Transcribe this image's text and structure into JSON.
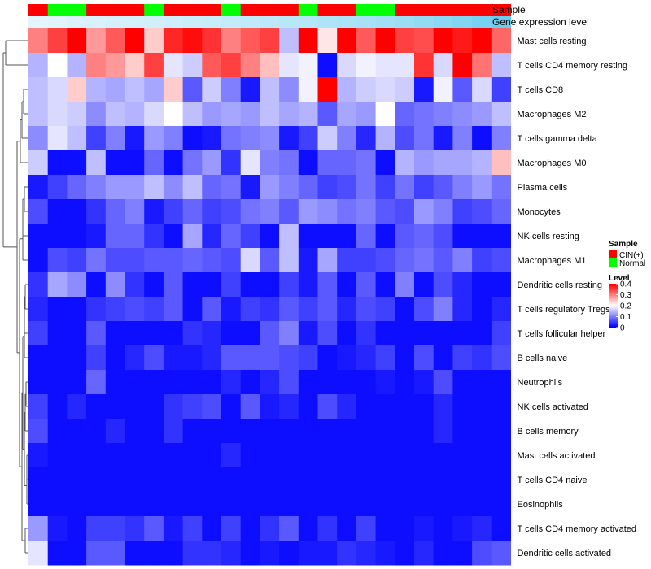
{
  "chart_data": {
    "type": "heatmap",
    "annotation_titles": {
      "sample": "Sample",
      "expression": "Gene expression level"
    },
    "samples": [
      "CIN(+)",
      "Normal",
      "Normal",
      "CIN(+)",
      "CIN(+)",
      "CIN(+)",
      "Normal",
      "CIN(+)",
      "CIN(+)",
      "CIN(+)",
      "Normal",
      "CIN(+)",
      "CIN(+)",
      "CIN(+)",
      "Normal",
      "CIN(+)",
      "CIN(+)",
      "Normal",
      "Normal",
      "CIN(+)",
      "CIN(+)",
      "CIN(+)",
      "CIN(+)",
      "CIN(+)",
      "CIN(+)"
    ],
    "expression_level": [
      0.02,
      0.05,
      0.08,
      0.1,
      0.12,
      0.14,
      0.16,
      0.18,
      0.2,
      0.22,
      0.25,
      0.27,
      0.3,
      0.33,
      0.36,
      0.4,
      0.43,
      0.46,
      0.5,
      0.55,
      0.6,
      0.66,
      0.72,
      0.8,
      0.9
    ],
    "rows": [
      {
        "name": "Mast cells resting",
        "values": [
          0.3,
          0.35,
          0.4,
          0.28,
          0.33,
          0.4,
          0.24,
          0.37,
          0.39,
          0.36,
          0.3,
          0.33,
          0.35,
          0.15,
          0.4,
          0.22,
          0.4,
          0.33,
          0.4,
          0.35,
          0.34,
          0.4,
          0.38,
          0.4,
          0.32
        ]
      },
      {
        "name": "T cells CD4 memory resting",
        "values": [
          0.14,
          0.2,
          0.14,
          0.3,
          0.28,
          0.24,
          0.35,
          0.18,
          0.16,
          0.33,
          0.35,
          0.3,
          0.25,
          0.18,
          0.19,
          0.01,
          0.17,
          0.19,
          0.18,
          0.18,
          0.36,
          0.17,
          0.4,
          0.31,
          0.15
        ]
      },
      {
        "name": "T cells CD8",
        "values": [
          0.15,
          0.17,
          0.24,
          0.14,
          0.13,
          0.15,
          0.13,
          0.24,
          0.07,
          0.16,
          0.1,
          0.02,
          0.15,
          0.11,
          0.19,
          0.4,
          0.14,
          0.16,
          0.17,
          0.16,
          0.02,
          0.19,
          0.07,
          0.17,
          0.05
        ]
      },
      {
        "name": "Macrophages M2",
        "values": [
          0.15,
          0.17,
          0.16,
          0.11,
          0.15,
          0.14,
          0.17,
          0.2,
          0.15,
          0.12,
          0.13,
          0.12,
          0.15,
          0.13,
          0.14,
          0.07,
          0.13,
          0.12,
          0.2,
          0.08,
          0.09,
          0.1,
          0.11,
          0.12,
          0.15
        ]
      },
      {
        "name": "T cells gamma delta",
        "values": [
          0.11,
          0.18,
          0.15,
          0.05,
          0.1,
          0.02,
          0.12,
          0.1,
          0.01,
          0.02,
          0.09,
          0.1,
          0.11,
          0.02,
          0.05,
          0.16,
          0.1,
          0.03,
          0.14,
          0.06,
          0.09,
          0.02,
          0.1,
          0.01,
          0.1
        ]
      },
      {
        "name": "Macrophages M0",
        "values": [
          0.16,
          0.01,
          0.01,
          0.15,
          0.01,
          0.01,
          0.08,
          0.01,
          0.09,
          0.12,
          0.04,
          0.18,
          0.1,
          0.09,
          0.01,
          0.08,
          0.08,
          0.09,
          0.01,
          0.14,
          0.12,
          0.13,
          0.13,
          0.14,
          0.25
        ]
      },
      {
        "name": "Plasma cells",
        "values": [
          0.02,
          0.05,
          0.08,
          0.1,
          0.12,
          0.12,
          0.15,
          0.11,
          0.15,
          0.08,
          0.09,
          0.02,
          0.12,
          0.1,
          0.08,
          0.05,
          0.06,
          0.09,
          0.05,
          0.09,
          0.05,
          0.07,
          0.1,
          0.12,
          0.09
        ]
      },
      {
        "name": "Monocytes",
        "values": [
          0.06,
          0.01,
          0.01,
          0.04,
          0.08,
          0.1,
          0.02,
          0.05,
          0.08,
          0.05,
          0.06,
          0.09,
          0.1,
          0.07,
          0.12,
          0.11,
          0.09,
          0.1,
          0.07,
          0.06,
          0.12,
          0.1,
          0.05,
          0.06,
          0.08
        ]
      },
      {
        "name": "NK cells resting",
        "values": [
          0.01,
          0.01,
          0.01,
          0.02,
          0.08,
          0.08,
          0.04,
          0.01,
          0.13,
          0.03,
          0.08,
          0.05,
          0.01,
          0.15,
          0.01,
          0.01,
          0.01,
          0.08,
          0.01,
          0.07,
          0.08,
          0.06,
          0.01,
          0.01,
          0.01
        ]
      },
      {
        "name": "Macrophages M1",
        "values": [
          0.01,
          0.06,
          0.05,
          0.09,
          0.06,
          0.06,
          0.07,
          0.07,
          0.08,
          0.07,
          0.06,
          0.17,
          0.07,
          0.15,
          0.02,
          0.13,
          0.05,
          0.05,
          0.06,
          0.08,
          0.09,
          0.07,
          0.1,
          0.05,
          0.06
        ]
      },
      {
        "name": "Dendritic cells resting",
        "values": [
          0.04,
          0.13,
          0.11,
          0.01,
          0.11,
          0.04,
          0.01,
          0.07,
          0.01,
          0.01,
          0.05,
          0.01,
          0.01,
          0.05,
          0.02,
          0.07,
          0.01,
          0.07,
          0.01,
          0.1,
          0.01,
          0.06,
          0.03,
          0.01,
          0.01
        ]
      },
      {
        "name": "T cells regulatory  Tregs",
        "values": [
          0.03,
          0.01,
          0.01,
          0.04,
          0.05,
          0.06,
          0.05,
          0.07,
          0.01,
          0.07,
          0.02,
          0.05,
          0.04,
          0.07,
          0.05,
          0.07,
          0.03,
          0.06,
          0.05,
          0.01,
          0.06,
          0.1,
          0.03,
          0.01,
          0.03
        ]
      },
      {
        "name": "T cells follicular helper",
        "values": [
          0.05,
          0.01,
          0.01,
          0.07,
          0.01,
          0.01,
          0.01,
          0.01,
          0.04,
          0.03,
          0.01,
          0.01,
          0.07,
          0.1,
          0.02,
          0.06,
          0.01,
          0.04,
          0.01,
          0.01,
          0.01,
          0.01,
          0.01,
          0.01,
          0.05
        ]
      },
      {
        "name": "B cells naive",
        "values": [
          0.01,
          0.01,
          0.01,
          0.05,
          0.01,
          0.03,
          0.06,
          0.02,
          0.02,
          0.03,
          0.07,
          0.07,
          0.07,
          0.06,
          0.05,
          0.01,
          0.02,
          0.03,
          0.05,
          0.01,
          0.06,
          0.01,
          0.05,
          0.04,
          0.06
        ]
      },
      {
        "name": "Neutrophils",
        "values": [
          0.01,
          0.01,
          0.01,
          0.08,
          0.01,
          0.01,
          0.01,
          0.01,
          0.01,
          0.01,
          0.03,
          0.01,
          0.03,
          0.06,
          0.01,
          0.01,
          0.01,
          0.01,
          0.02,
          0.01,
          0.02,
          0.06,
          0.01,
          0.01,
          0.01
        ]
      },
      {
        "name": "NK cells activated",
        "values": [
          0.05,
          0.01,
          0.03,
          0.01,
          0.01,
          0.01,
          0.01,
          0.04,
          0.05,
          0.06,
          0.01,
          0.07,
          0.02,
          0.03,
          0.01,
          0.06,
          0.03,
          0.01,
          0.01,
          0.01,
          0.01,
          0.03,
          0.01,
          0.01,
          0.01
        ]
      },
      {
        "name": "B cells memory",
        "values": [
          0.06,
          0.01,
          0.01,
          0.01,
          0.03,
          0.01,
          0.01,
          0.04,
          0.01,
          0.01,
          0.01,
          0.01,
          0.01,
          0.01,
          0.01,
          0.01,
          0.01,
          0.01,
          0.01,
          0.01,
          0.01,
          0.03,
          0.01,
          0.01,
          0.01
        ]
      },
      {
        "name": "Mast cells activated",
        "values": [
          0.02,
          0.01,
          0.01,
          0.01,
          0.01,
          0.01,
          0.01,
          0.01,
          0.01,
          0.01,
          0.03,
          0.01,
          0.01,
          0.01,
          0.01,
          0.01,
          0.01,
          0.01,
          0.01,
          0.01,
          0.01,
          0.01,
          0.01,
          0.01,
          0.01
        ]
      },
      {
        "name": "T cells CD4 naive",
        "values": [
          0.01,
          0.01,
          0.01,
          0.01,
          0.01,
          0.01,
          0.01,
          0.01,
          0.01,
          0.01,
          0.01,
          0.01,
          0.01,
          0.01,
          0.01,
          0.01,
          0.01,
          0.01,
          0.01,
          0.01,
          0.01,
          0.01,
          0.01,
          0.01,
          0.01
        ]
      },
      {
        "name": "Eosinophils",
        "values": [
          0.01,
          0.01,
          0.01,
          0.01,
          0.01,
          0.01,
          0.01,
          0.01,
          0.01,
          0.01,
          0.01,
          0.01,
          0.01,
          0.01,
          0.01,
          0.01,
          0.01,
          0.01,
          0.01,
          0.01,
          0.01,
          0.01,
          0.01,
          0.01,
          0.01
        ]
      },
      {
        "name": "T cells CD4 memory activated",
        "values": [
          0.12,
          0.02,
          0.01,
          0.05,
          0.05,
          0.04,
          0.07,
          0.02,
          0.05,
          0.01,
          0.05,
          0.01,
          0.04,
          0.07,
          0.01,
          0.04,
          0.01,
          0.05,
          0.01,
          0.01,
          0.02,
          0.01,
          0.02,
          0.03,
          0.01
        ]
      },
      {
        "name": "Dendritic cells activated",
        "values": [
          0.18,
          0.01,
          0.01,
          0.07,
          0.07,
          0.01,
          0.01,
          0.01,
          0.04,
          0.04,
          0.03,
          0.01,
          0.02,
          0.01,
          0.02,
          0.02,
          0.04,
          0.03,
          0.02,
          0.01,
          0.03,
          0.01,
          0.01,
          0.06,
          0.07
        ]
      }
    ],
    "legend": {
      "sample_title": "Sample",
      "sample_items": [
        {
          "label": "CIN(+)",
          "color": "#ff0000"
        },
        {
          "label": "Normal",
          "color": "#00ff00"
        }
      ],
      "level_title": "Level",
      "level_ticks": [
        {
          "label": "0.4",
          "value": 0.4
        },
        {
          "label": "0.3",
          "value": 0.3
        },
        {
          "label": "0.2",
          "value": 0.2
        },
        {
          "label": "0.1",
          "value": 0.1
        },
        {
          "label": "0",
          "value": 0
        }
      ]
    },
    "color_scale": {
      "low": "#0000ff",
      "mid": "#ffffff",
      "high": "#ff0000",
      "min": 0,
      "mid_value": 0.2,
      "max": 0.4
    },
    "expression_colors": {
      "low": "#e6f6fd",
      "high": "#5bc8ef"
    }
  }
}
